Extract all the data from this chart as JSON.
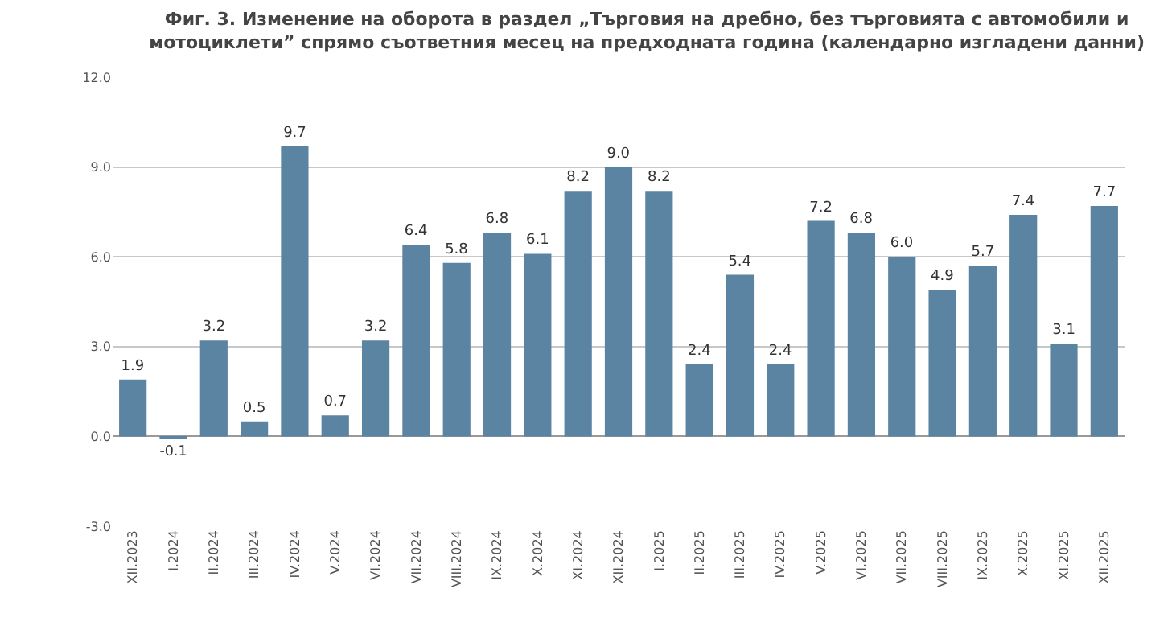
{
  "chart_data": {
    "type": "bar",
    "title": "Фиг. 3. Изменение на оборота в раздел „Търговия на дребно, без търговията с автомобили и мотоциклети” спрямо съответния месец на предходната година (календарно изгладени данни)",
    "categories": [
      "XII.2023",
      "I.2024",
      "II.2024",
      "III.2024",
      "IV.2024",
      "V.2024",
      "VI.2024",
      "VII.2024",
      "VIII.2024",
      "IX.2024",
      "X.2024",
      "XI.2024",
      "XII.2024",
      "I.2025",
      "II.2025",
      "III.2025",
      "IV.2025",
      "V.2025",
      "VI.2025",
      "VII.2025",
      "VIII.2025",
      "IX.2025",
      "X.2025",
      "XI.2025",
      "XII.2025"
    ],
    "values": [
      1.9,
      -0.1,
      3.2,
      0.5,
      9.7,
      0.7,
      3.2,
      6.4,
      5.8,
      6.8,
      6.1,
      8.2,
      9.0,
      8.2,
      2.4,
      5.4,
      2.4,
      7.2,
      6.8,
      6.0,
      4.9,
      5.7,
      7.4,
      3.1,
      7.7
    ],
    "value_labels": [
      "1.9",
      "-0.1",
      "3.2",
      "0.5",
      "9.7",
      "0.7",
      "3.2",
      "6.4",
      "5.8",
      "6.8",
      "6.1",
      "8.2",
      "9.0",
      "8.2",
      "2.4",
      "5.4",
      "2.4",
      "7.2",
      "6.8",
      "6.0",
      "4.9",
      "5.7",
      "7.4",
      "3.1",
      "7.7"
    ],
    "color": "#5b84a2",
    "ylim": [
      -3,
      12
    ],
    "yticks": [
      {
        "value": -3,
        "label": "-3.0"
      },
      {
        "value": 0,
        "label": "0.0"
      },
      {
        "value": 3,
        "label": "3.0"
      },
      {
        "value": 6,
        "label": "6.0"
      },
      {
        "value": 9,
        "label": "9.0"
      },
      {
        "value": 12,
        "label": "12.0"
      }
    ],
    "grid": "y",
    "legend": false
  }
}
